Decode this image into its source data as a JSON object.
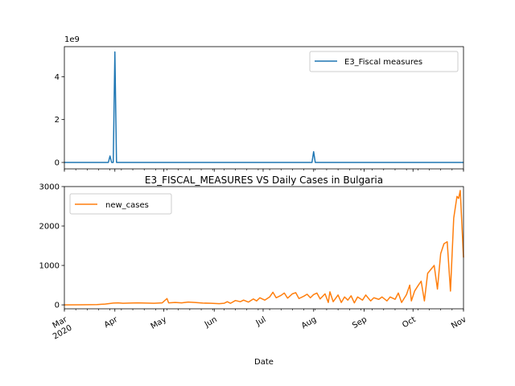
{
  "chart_data": [
    {
      "type": "line",
      "title": "",
      "offset_label": "1e9",
      "xlabel": "",
      "ylabel": "",
      "x_range": [
        0,
        245
      ],
      "ylim": [
        -300000000,
        5400000000
      ],
      "yticks": [
        0,
        2,
        4
      ],
      "legend": {
        "position": "top-right",
        "entries": [
          "E3_Fiscal measures"
        ]
      },
      "series": [
        {
          "name": "E3_Fiscal measures",
          "color": "#1f77b4",
          "points": [
            [
              0,
              0
            ],
            [
              27,
              0
            ],
            [
              28,
              300000000
            ],
            [
              29,
              0
            ],
            [
              30,
              0
            ],
            [
              31,
              5150000000
            ],
            [
              32,
              0
            ],
            [
              152,
              0
            ],
            [
              153,
              500000000
            ],
            [
              154,
              0
            ],
            [
              245,
              0
            ]
          ]
        }
      ]
    },
    {
      "type": "line",
      "title": "E3_FISCAL_MEASURES VS Daily Cases in Bulgaria",
      "xlabel": "Date",
      "ylabel": "",
      "x_range": [
        0,
        245
      ],
      "ylim": [
        -100,
        3000
      ],
      "yticks": [
        0,
        1000,
        2000,
        3000
      ],
      "x_month_ticks": [
        {
          "day": 0,
          "label": "Mar",
          "sublabel": "2020"
        },
        {
          "day": 31,
          "label": "Apr"
        },
        {
          "day": 61,
          "label": "May"
        },
        {
          "day": 92,
          "label": "Jun"
        },
        {
          "day": 122,
          "label": "Jul"
        },
        {
          "day": 153,
          "label": "Aug"
        },
        {
          "day": 184,
          "label": "Sep"
        },
        {
          "day": 214,
          "label": "Oct"
        },
        {
          "day": 245,
          "label": "Nov"
        }
      ],
      "legend": {
        "position": "top-left",
        "entries": [
          "new_cases"
        ]
      },
      "series": [
        {
          "name": "new_cases",
          "color": "#ff7f0e",
          "points": [
            [
              0,
              0
            ],
            [
              10,
              2
            ],
            [
              20,
              8
            ],
            [
              25,
              20
            ],
            [
              28,
              35
            ],
            [
              30,
              45
            ],
            [
              33,
              50
            ],
            [
              36,
              40
            ],
            [
              40,
              45
            ],
            [
              45,
              50
            ],
            [
              50,
              45
            ],
            [
              55,
              40
            ],
            [
              60,
              50
            ],
            [
              63,
              160
            ],
            [
              64,
              50
            ],
            [
              68,
              60
            ],
            [
              72,
              50
            ],
            [
              76,
              70
            ],
            [
              80,
              60
            ],
            [
              85,
              45
            ],
            [
              90,
              40
            ],
            [
              95,
              30
            ],
            [
              98,
              40
            ],
            [
              100,
              80
            ],
            [
              102,
              40
            ],
            [
              105,
              110
            ],
            [
              108,
              80
            ],
            [
              110,
              120
            ],
            [
              113,
              70
            ],
            [
              116,
              150
            ],
            [
              118,
              100
            ],
            [
              120,
              180
            ],
            [
              123,
              120
            ],
            [
              126,
              200
            ],
            [
              128,
              320
            ],
            [
              130,
              180
            ],
            [
              133,
              240
            ],
            [
              135,
              300
            ],
            [
              137,
              170
            ],
            [
              140,
              280
            ],
            [
              142,
              310
            ],
            [
              144,
              160
            ],
            [
              147,
              220
            ],
            [
              149,
              270
            ],
            [
              151,
              180
            ],
            [
              153,
              260
            ],
            [
              155,
              300
            ],
            [
              157,
              150
            ],
            [
              160,
              280
            ],
            [
              162,
              60
            ],
            [
              163,
              330
            ],
            [
              165,
              80
            ],
            [
              168,
              250
            ],
            [
              170,
              60
            ],
            [
              172,
              200
            ],
            [
              174,
              120
            ],
            [
              176,
              230
            ],
            [
              178,
              50
            ],
            [
              180,
              200
            ],
            [
              183,
              120
            ],
            [
              185,
              250
            ],
            [
              188,
              100
            ],
            [
              190,
              180
            ],
            [
              193,
              140
            ],
            [
              195,
              200
            ],
            [
              198,
              100
            ],
            [
              200,
              200
            ],
            [
              203,
              140
            ],
            [
              205,
              300
            ],
            [
              207,
              60
            ],
            [
              210,
              260
            ],
            [
              212,
              500
            ],
            [
              213,
              100
            ],
            [
              215,
              350
            ],
            [
              217,
              480
            ],
            [
              219,
              600
            ],
            [
              221,
              100
            ],
            [
              223,
              800
            ],
            [
              225,
              900
            ],
            [
              227,
              1000
            ],
            [
              229,
              400
            ],
            [
              231,
              1300
            ],
            [
              233,
              1550
            ],
            [
              235,
              1600
            ],
            [
              237,
              350
            ],
            [
              239,
              2200
            ],
            [
              241,
              2750
            ],
            [
              242,
              2700
            ],
            [
              243,
              2900
            ],
            [
              245,
              1200
            ]
          ]
        }
      ]
    }
  ]
}
